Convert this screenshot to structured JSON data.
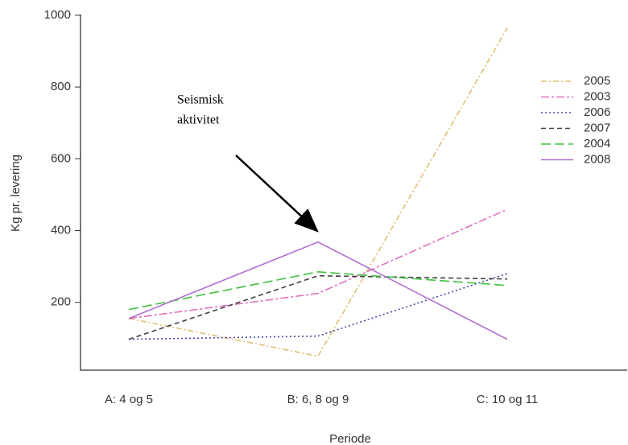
{
  "chart_data": {
    "type": "line",
    "xlabel": "Periode",
    "ylabel": "Kg pr. levering",
    "categories": [
      "A: 4 og 5",
      "B: 6, 8 og 9",
      "C: 10 og 11"
    ],
    "ylim": [
      11,
      1002
    ],
    "yticks": [
      200,
      400,
      600,
      800,
      1000
    ],
    "annotation": [
      "Seismisk",
      "aktivitet"
    ],
    "series": [
      {
        "name": "2005",
        "color": "#e0c070",
        "linestyle": "7,3,2,3",
        "values": [
          155,
          50,
          964
        ]
      },
      {
        "name": "2003",
        "color": "#e070c0",
        "linestyle": "10,3,3,3",
        "values": [
          155,
          225,
          459
        ]
      },
      {
        "name": "2006",
        "color": "#4848b0",
        "linestyle": "2,3",
        "values": [
          97,
          106,
          280
        ]
      },
      {
        "name": "2007",
        "color": "#404040",
        "linestyle": "6,4",
        "values": [
          97,
          274,
          265
        ]
      },
      {
        "name": "2004",
        "color": "#40c040",
        "linestyle": "12,5",
        "values": [
          180,
          285,
          247
        ]
      },
      {
        "name": "2008",
        "color": "#b070d0",
        "linestyle": "none",
        "values": [
          155,
          368,
          97
        ]
      }
    ]
  }
}
